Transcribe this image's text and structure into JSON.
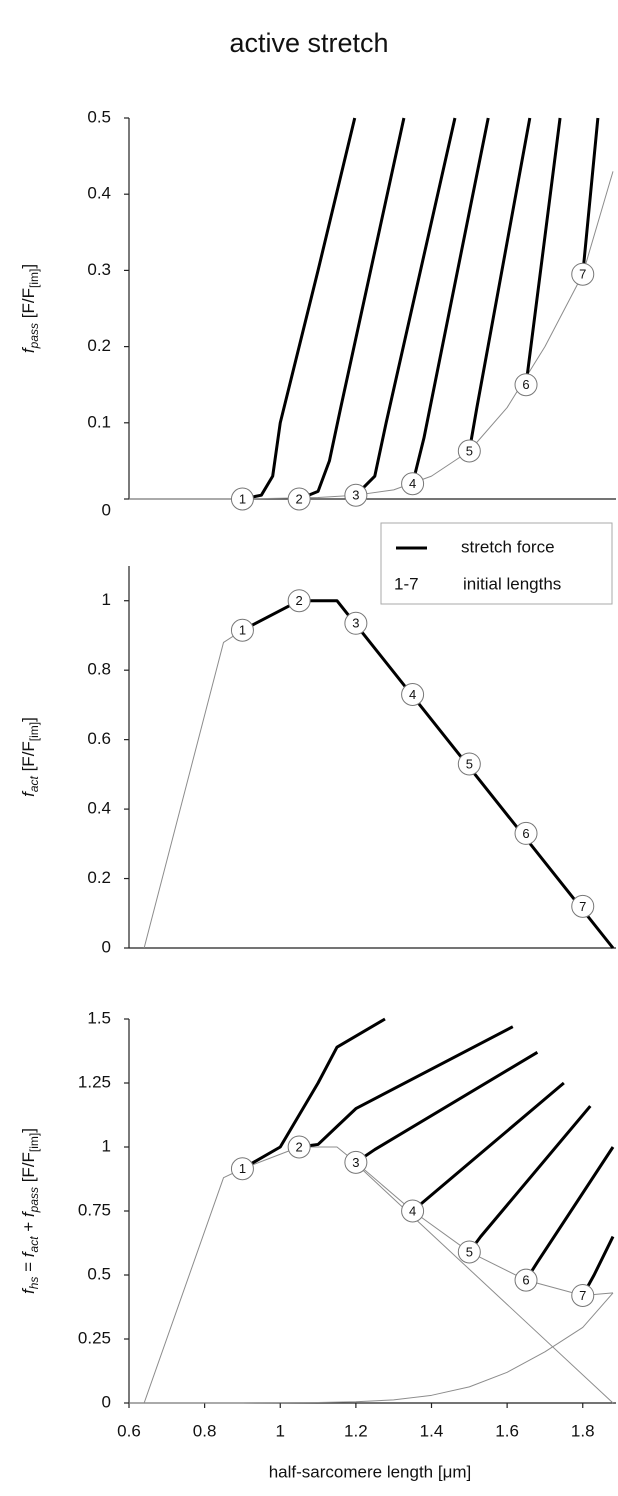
{
  "chart_data": [
    {
      "type": "line",
      "title": "active stretch",
      "ylabel": [
        {
          "text": "f",
          "italic": true
        },
        {
          "text": "pass",
          "italic": true,
          "sub": true
        },
        {
          "text": " [F/F"
        },
        {
          "text": "[im]",
          "sub": true
        },
        {
          "text": "]"
        }
      ],
      "xlim": [
        0.6,
        1.88
      ],
      "ylim": [
        0,
        0.5
      ],
      "yticks": [
        0,
        0.1,
        0.2,
        0.3,
        0.4,
        0.5
      ],
      "series": [
        {
          "color": "#8c8c8c",
          "width": 1,
          "x": [
            0.6,
            0.8,
            0.9,
            1.0,
            1.1,
            1.2,
            1.3,
            1.4,
            1.5,
            1.6,
            1.7,
            1.8,
            1.88
          ],
          "values": [
            0,
            0,
            0,
            0.001,
            0.002,
            0.005,
            0.012,
            0.03,
            0.063,
            0.12,
            0.2,
            0.295,
            0.43
          ]
        },
        {
          "name": "stretch force",
          "color": "#000000",
          "width": 3,
          "x": [
            0.9,
            0.95,
            0.98,
            1.0,
            1.1,
            1.197,
            null,
            1.05,
            1.1,
            1.13,
            1.16,
            1.327,
            null,
            1.2,
            1.25,
            1.28,
            1.462,
            null,
            1.35,
            1.38,
            1.55,
            null,
            1.5,
            1.52,
            1.66,
            null,
            1.65,
            1.74,
            null,
            1.8,
            1.84
          ],
          "values": [
            0,
            0.005,
            0.03,
            0.1,
            0.3,
            0.5,
            null,
            0,
            0.01,
            0.05,
            0.12,
            0.5,
            null,
            0.005,
            0.03,
            0.1,
            0.5,
            null,
            0.02,
            0.08,
            0.5,
            null,
            0.063,
            0.12,
            0.5,
            null,
            0.15,
            0.5,
            null,
            0.295,
            0.5
          ]
        }
      ],
      "markers": {
        "labels": [
          "1",
          "2",
          "3",
          "4",
          "5",
          "6",
          "7"
        ],
        "x": [
          0.9,
          1.05,
          1.2,
          1.35,
          1.5,
          1.65,
          1.8
        ],
        "y": [
          0,
          0,
          0.005,
          0.02,
          0.063,
          0.15,
          0.295
        ]
      },
      "legend": "lower right",
      "legend_note": {
        "symbol": "1-7",
        "text": "initial lengths"
      }
    },
    {
      "type": "line",
      "ylabel": [
        {
          "text": "f",
          "italic": true
        },
        {
          "text": "act",
          "italic": true,
          "sub": true
        },
        {
          "text": " [F/F"
        },
        {
          "text": "[im]",
          "sub": true
        },
        {
          "text": "]"
        }
      ],
      "xlim": [
        0.6,
        1.88
      ],
      "ylim": [
        0,
        1.1
      ],
      "yticks": [
        0,
        0.2,
        0.4,
        0.6,
        0.8,
        1
      ],
      "series": [
        {
          "color": "#8c8c8c",
          "width": 1,
          "x": [
            0.64,
            0.85,
            0.9
          ],
          "values": [
            0,
            0.88,
            0.915
          ]
        },
        {
          "color": "#000000",
          "width": 3,
          "x": [
            0.9,
            1.05,
            1.15,
            1.88
          ],
          "values": [
            0.915,
            1.0,
            1.0,
            0
          ]
        }
      ],
      "markers": {
        "labels": [
          "1",
          "2",
          "3",
          "4",
          "5",
          "6",
          "7"
        ],
        "x": [
          0.9,
          1.05,
          1.2,
          1.35,
          1.5,
          1.65,
          1.8
        ],
        "y": [
          0.915,
          1.0,
          0.935,
          0.73,
          0.53,
          0.33,
          0.12
        ]
      }
    },
    {
      "type": "line",
      "ylabel": [
        {
          "text": "f",
          "italic": true
        },
        {
          "text": "hs",
          "italic": true,
          "sub": true
        },
        {
          "text": " = "
        },
        {
          "text": "f",
          "italic": true
        },
        {
          "text": "act",
          "italic": true,
          "sub": true
        },
        {
          "text": " + "
        },
        {
          "text": "f",
          "italic": true
        },
        {
          "text": "pass",
          "italic": true,
          "sub": true
        },
        {
          "text": " [F/F"
        },
        {
          "text": "[im]",
          "sub": true
        },
        {
          "text": "]"
        }
      ],
      "xlabel": "half-sarcomere length [μm]",
      "xlim": [
        0.6,
        1.88
      ],
      "ylim": [
        0,
        1.5
      ],
      "xticks": [
        0.6,
        0.8,
        1,
        1.2,
        1.4,
        1.6,
        1.8
      ],
      "yticks": [
        0,
        0.25,
        0.5,
        0.75,
        1,
        1.25,
        1.5
      ],
      "series": [
        {
          "color": "#8c8c8c",
          "width": 1,
          "x": [
            0.6,
            0.8,
            0.9,
            1.0,
            1.1,
            1.2,
            1.3,
            1.4,
            1.5,
            1.6,
            1.7,
            1.8,
            1.88
          ],
          "values": [
            0,
            0,
            0,
            0.001,
            0.002,
            0.005,
            0.012,
            0.03,
            0.063,
            0.12,
            0.2,
            0.295,
            0.43
          ]
        },
        {
          "color": "#8c8c8c",
          "width": 1,
          "x": [
            1.2,
            1.88
          ],
          "values": [
            0.935,
            0
          ]
        },
        {
          "color": "#8c8c8c",
          "width": 1,
          "x": [
            0.64,
            0.85,
            0.9,
            1.05,
            1.15,
            1.2,
            1.35,
            1.5,
            1.65,
            1.8,
            1.88
          ],
          "values": [
            0,
            0.88,
            0.915,
            1.0,
            1.0,
            0.94,
            0.75,
            0.59,
            0.48,
            0.42,
            0.43
          ]
        },
        {
          "color": "#000000",
          "width": 3,
          "x": [
            0.9,
            1.0,
            1.1,
            1.15,
            1.277,
            null,
            1.05,
            1.1,
            1.15,
            1.2,
            1.615,
            null,
            1.2,
            1.25,
            1.68,
            null,
            1.35,
            1.75,
            null,
            1.5,
            1.53,
            1.82,
            null,
            1.65,
            1.68,
            1.88,
            null,
            1.8,
            1.83,
            1.88
          ],
          "values": [
            0.915,
            1.0,
            1.25,
            1.39,
            1.5,
            null,
            1.0,
            1.01,
            1.08,
            1.15,
            1.47,
            null,
            0.94,
            0.99,
            1.37,
            null,
            0.75,
            1.25,
            null,
            0.59,
            0.65,
            1.16,
            null,
            0.48,
            0.55,
            1.0,
            null,
            0.42,
            0.5,
            0.65
          ]
        }
      ],
      "markers": {
        "labels": [
          "1",
          "2",
          "3",
          "4",
          "5",
          "6",
          "7"
        ],
        "x": [
          0.9,
          1.05,
          1.2,
          1.35,
          1.5,
          1.65,
          1.8
        ],
        "y": [
          0.915,
          1.0,
          0.94,
          0.75,
          0.59,
          0.48,
          0.42
        ]
      }
    }
  ]
}
